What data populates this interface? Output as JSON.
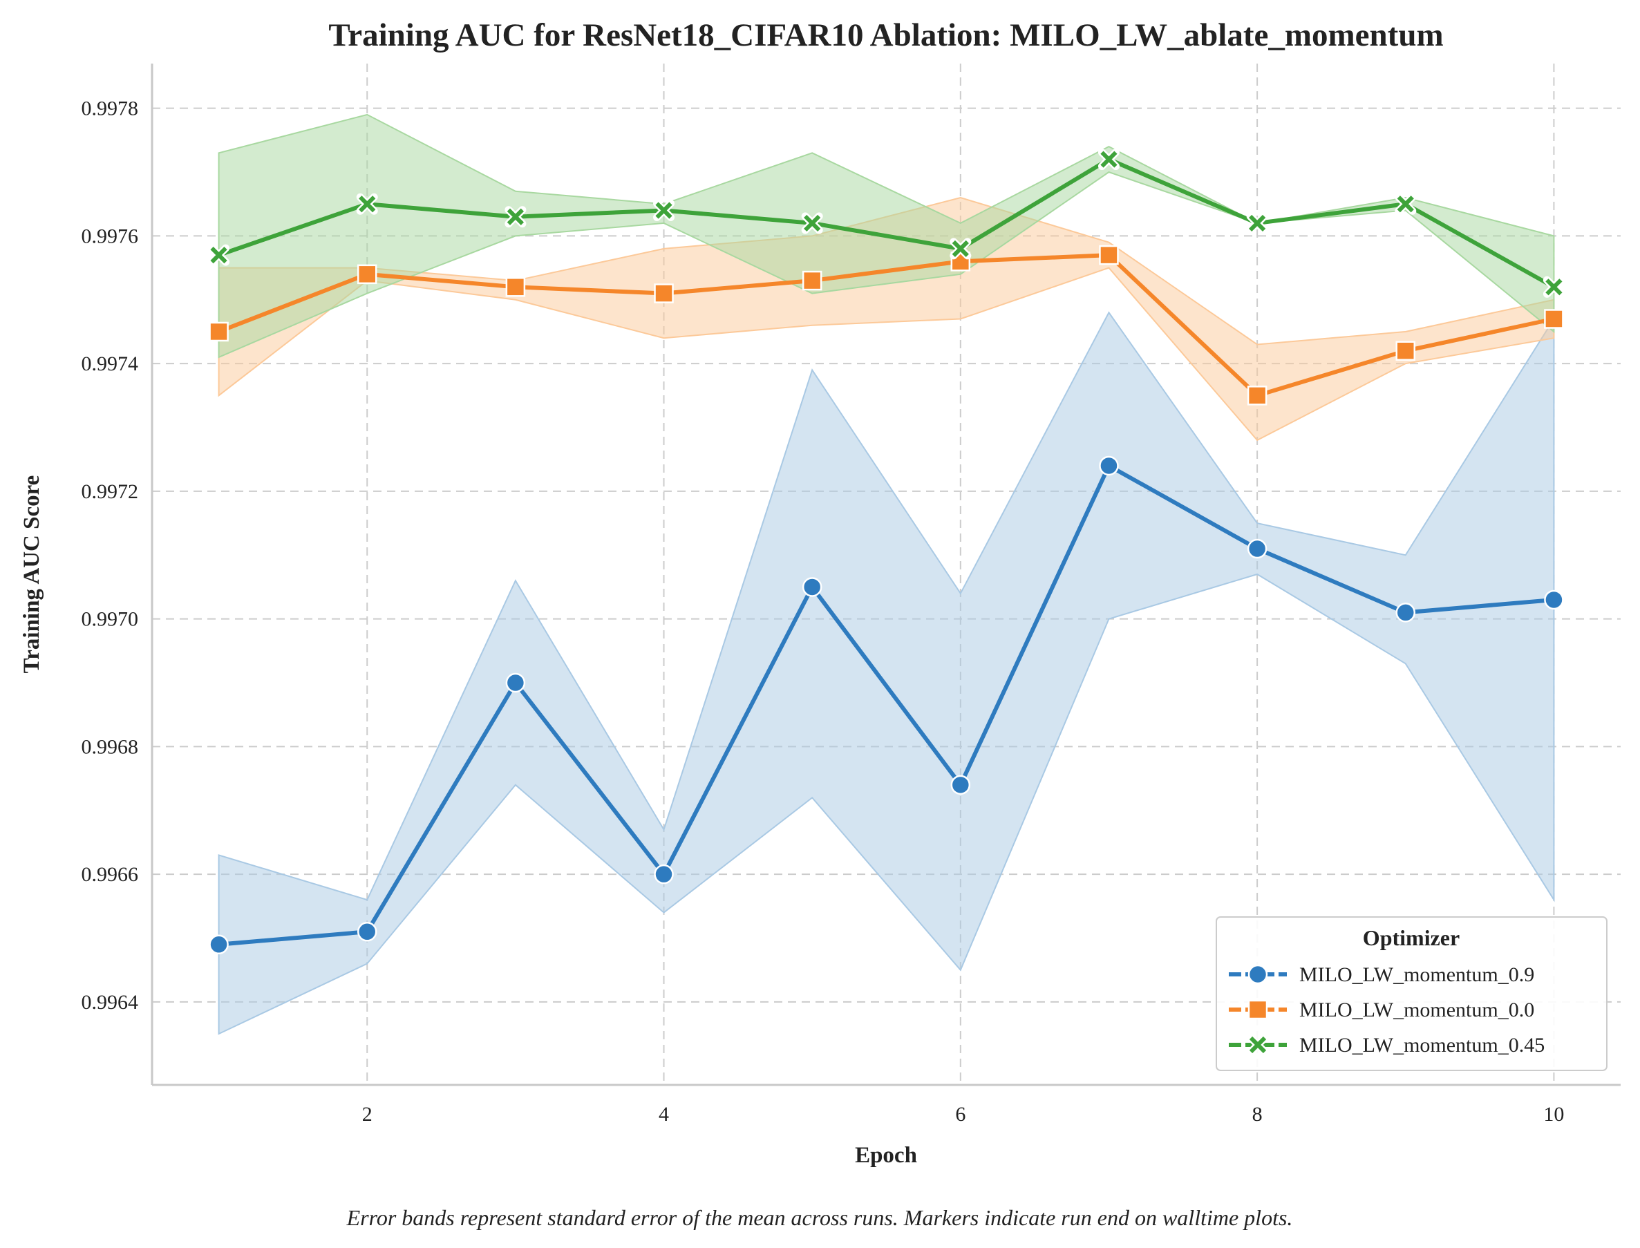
{
  "chart_data": {
    "type": "line",
    "title": "Training AUC for ResNet18_CIFAR10 Ablation: MILO_LW_ablate_momentum",
    "xlabel": "Epoch",
    "ylabel": "Training AUC Score",
    "caption": "Error bands represent standard error of the mean across runs. Markers indicate run end on walltime plots.",
    "x": [
      1,
      2,
      3,
      4,
      5,
      6,
      7,
      8,
      9,
      10
    ],
    "xlim": [
      0.55,
      10.45
    ],
    "ylim": [
      0.99627,
      0.99787
    ],
    "xticks": [
      2,
      4,
      6,
      8,
      10
    ],
    "xtick_labels": [
      "2",
      "4",
      "6",
      "8",
      "10"
    ],
    "yticks": [
      0.9964,
      0.9966,
      0.9968,
      0.997,
      0.9972,
      0.9974,
      0.9976,
      0.9978
    ],
    "ytick_labels": [
      "0.9964",
      "0.9966",
      "0.9968",
      "0.9970",
      "0.9972",
      "0.9974",
      "0.9976",
      "0.9978"
    ],
    "grid": true,
    "legend": {
      "title": "Optimizer",
      "placement": "lower-right"
    },
    "series": [
      {
        "name": "MILO_LW_momentum_0.9",
        "color": "#2e7bbf",
        "band_color": "#a9c9e4",
        "marker": "circle",
        "values": [
          0.99649,
          0.99651,
          0.9969,
          0.9966,
          0.99705,
          0.99674,
          0.99724,
          0.99711,
          0.99701,
          0.99703
        ],
        "upper": [
          0.99663,
          0.99656,
          0.99706,
          0.99667,
          0.99739,
          0.99704,
          0.99748,
          0.99715,
          0.9971,
          0.99747
        ],
        "lower": [
          0.99635,
          0.99646,
          0.99674,
          0.99654,
          0.99672,
          0.99645,
          0.997,
          0.99707,
          0.99693,
          0.99656
        ]
      },
      {
        "name": "MILO_LW_momentum_0.0",
        "color": "#f5862a",
        "band_color": "#fcc999",
        "marker": "square",
        "values": [
          0.99745,
          0.99754,
          0.99752,
          0.99751,
          0.99753,
          0.99756,
          0.99757,
          0.99735,
          0.99742,
          0.99747
        ],
        "upper": [
          0.99755,
          0.99755,
          0.99753,
          0.99758,
          0.9976,
          0.99766,
          0.99759,
          0.99743,
          0.99745,
          0.9975
        ],
        "lower": [
          0.99735,
          0.99753,
          0.9975,
          0.99744,
          0.99746,
          0.99747,
          0.99755,
          0.99728,
          0.9974,
          0.99744
        ]
      },
      {
        "name": "MILO_LW_momentum_0.45",
        "color": "#3ea33a",
        "band_color": "#a8d8a0",
        "marker": "x",
        "values": [
          0.99757,
          0.99765,
          0.99763,
          0.99764,
          0.99762,
          0.99758,
          0.99772,
          0.99762,
          0.99765,
          0.99752
        ],
        "upper": [
          0.99773,
          0.99779,
          0.99767,
          0.99765,
          0.99773,
          0.99762,
          0.99774,
          0.99762,
          0.99766,
          0.9976
        ],
        "lower": [
          0.99741,
          0.99751,
          0.9976,
          0.99762,
          0.99751,
          0.99754,
          0.9977,
          0.99762,
          0.99764,
          0.99745
        ]
      }
    ]
  }
}
